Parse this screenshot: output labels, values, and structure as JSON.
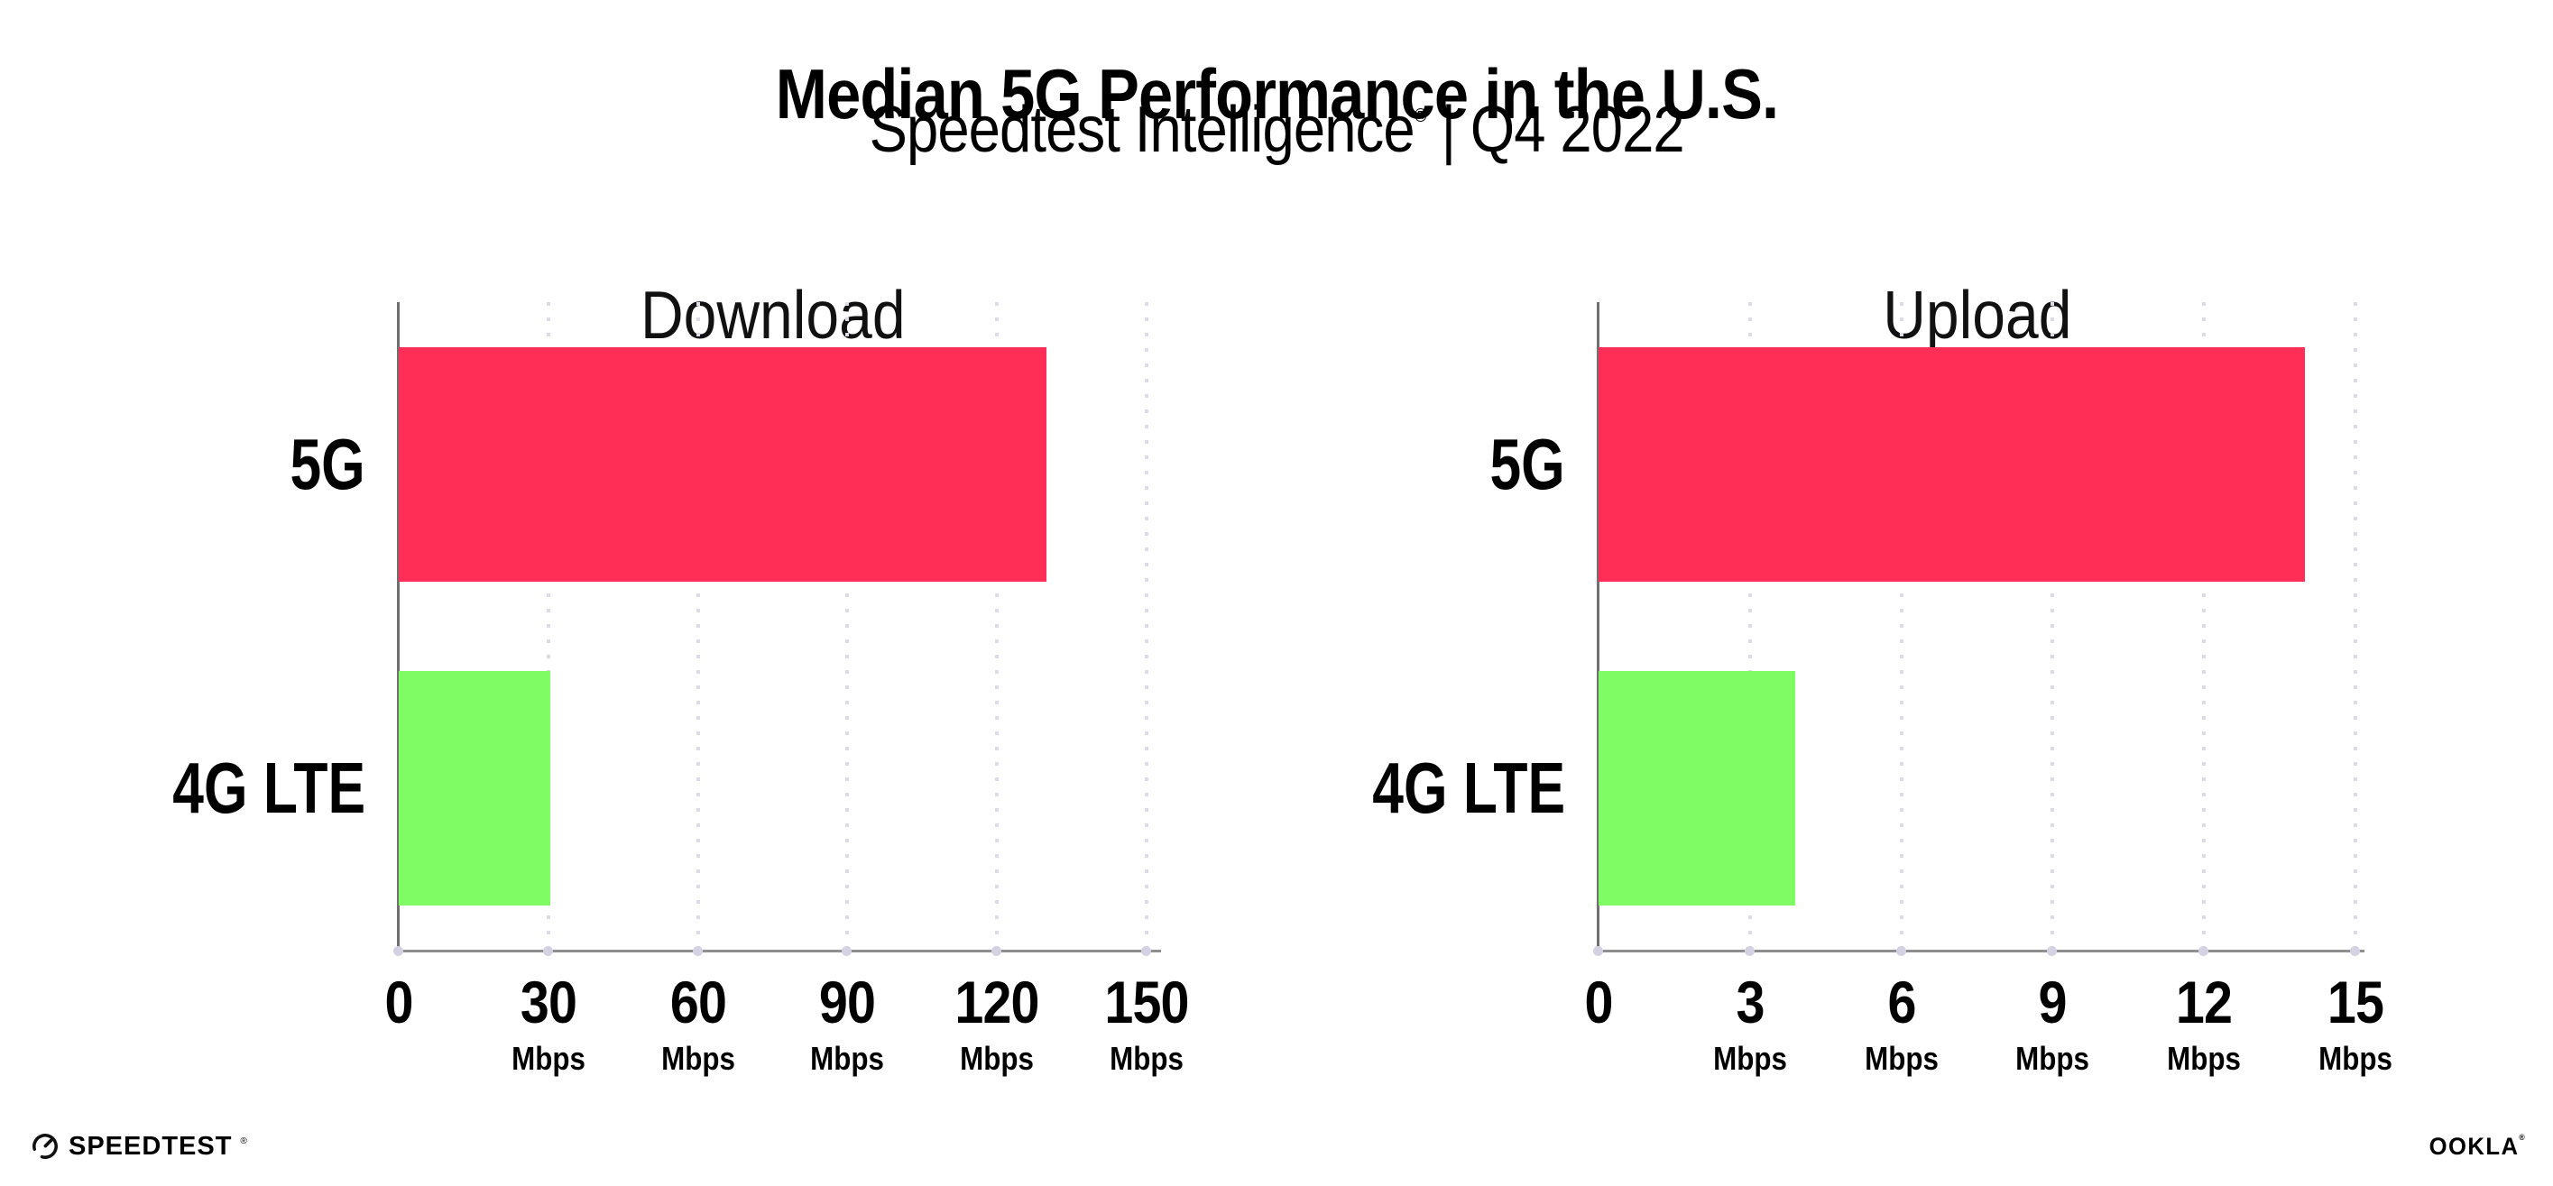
{
  "header": {
    "title": "Median 5G Performance in the U.S.",
    "subtitle_brand": "Speedtest Intelligence",
    "subtitle_reg": "®",
    "subtitle_rest": " | Q4 2022"
  },
  "footer": {
    "speedtest_logo_text": "SPEEDTEST",
    "speedtest_mark": "®",
    "ookla_logo_text": "OOKLA",
    "ookla_mark": "®",
    "speedtest_gauge_icon": "speedtest-gauge-icon"
  },
  "colors": {
    "bar_5g": "#FF2E57",
    "bar_4g_lte": "#7FFC64",
    "gridline": "#DDDBE8",
    "tick_dot": "#D4D2E2",
    "x_axis_line": "#8F8F8F",
    "y_axis_line": "#707070",
    "text": "#000000"
  },
  "chart_data": [
    {
      "type": "bar",
      "orientation": "horizontal",
      "title": "Download",
      "categories": [
        "5G",
        "4G LTE"
      ],
      "values": [
        130,
        30.4
      ],
      "unit": "Mbps",
      "xlim": [
        0,
        150
      ],
      "xticks": [
        0,
        30,
        60,
        90,
        120,
        150
      ],
      "bar_colors": [
        "#FF2E57",
        "#7FFC64"
      ],
      "grid": "vertical-dotted",
      "legend": "none"
    },
    {
      "type": "bar",
      "orientation": "horizontal",
      "title": "Upload",
      "categories": [
        "5G",
        "4G LTE"
      ],
      "values": [
        14,
        3.9
      ],
      "unit": "Mbps",
      "xlim": [
        0,
        15
      ],
      "xticks": [
        0,
        3,
        6,
        9,
        12,
        15
      ],
      "bar_colors": [
        "#FF2E57",
        "#7FFC64"
      ],
      "grid": "vertical-dotted",
      "legend": "none"
    }
  ]
}
